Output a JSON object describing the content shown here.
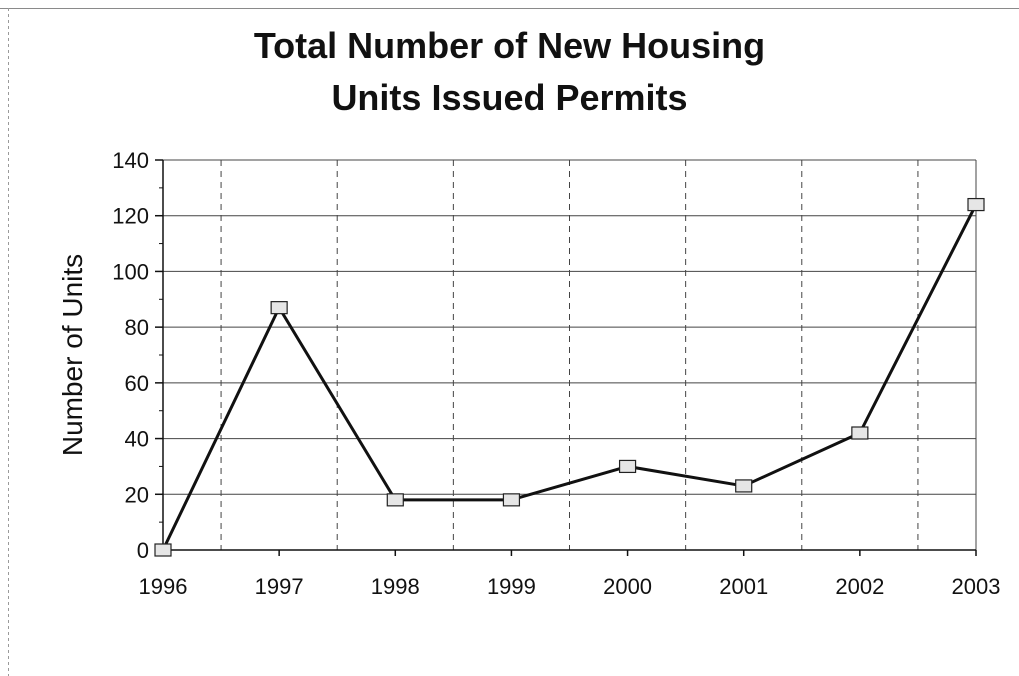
{
  "chart_data": {
    "type": "line",
    "title_lines": [
      "Total Number of New Housing",
      "Units Issued Permits"
    ],
    "xlabel": "",
    "ylabel": "Number of Units",
    "categories": [
      "1996",
      "1997",
      "1998",
      "1999",
      "2000",
      "2001",
      "2002",
      "2003"
    ],
    "series": [
      {
        "values": [
          0,
          87,
          18,
          18,
          30,
          23,
          42,
          124
        ]
      }
    ],
    "ylim": [
      0,
      140
    ],
    "yticks": [
      0,
      20,
      40,
      60,
      80,
      100,
      120,
      140
    ],
    "grid": true,
    "legend": "none",
    "colors": {
      "line": "#111111",
      "marker_fill": "#e6e6e6",
      "grid": "#444444"
    }
  }
}
